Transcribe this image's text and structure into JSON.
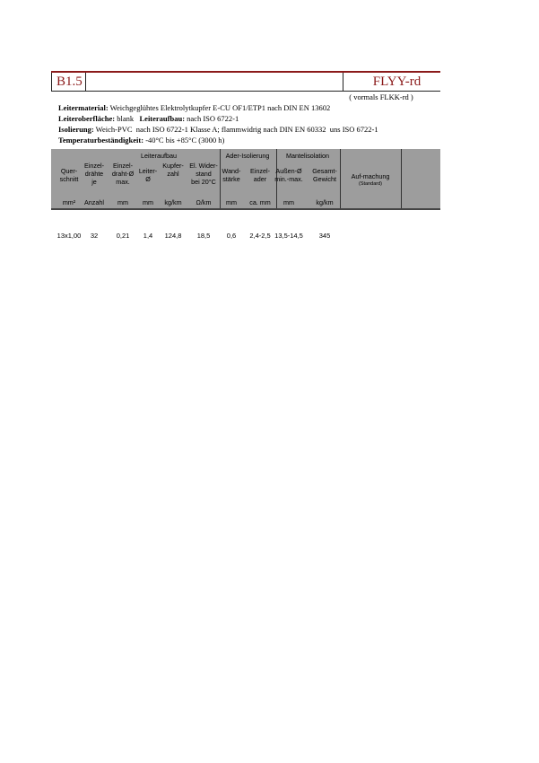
{
  "header": {
    "code": "B1.5",
    "product": "FLYY-rd",
    "formerly": "( vormals FLKK-rd )"
  },
  "specs": [
    {
      "label": "Leitermaterial:",
      "value": " Weichgeglühtes Elektrolytkupfer E-CU OF1/ETP1 nach DIN EN 13602"
    },
    {
      "label": "Leiteroberfläche:",
      "value": " blank   ",
      "label2": "Leiteraufbau:",
      "value2": " nach ISO 6722-1"
    },
    {
      "label": "Isolierung:",
      "value": " Weich-PVC  nach ISO 6722-1 Klasse A; flammwidrig nach DIN EN 60332  uns ISO 6722-1"
    },
    {
      "label": "Temperaturbeständigkeit:",
      "value": " -40°C bis +85°C (3000 h)"
    }
  ],
  "table": {
    "groups": [
      "Leiteraufbau",
      "Ader-Isolierung",
      "Mantelisolation"
    ],
    "columns": [
      {
        "label": "Quer-\nschnitt",
        "unit": "mm²"
      },
      {
        "label": "Einzel-\ndrähte\nje",
        "unit": "Anzahl"
      },
      {
        "label": "Einzel-\ndraht-Ø\nmax.",
        "unit": "mm"
      },
      {
        "label": "Leiter-\nØ",
        "unit": "mm"
      },
      {
        "label": "Kupfer-\nzahl",
        "unit": "kg/km"
      },
      {
        "label": "El. Wider-\nstand\nbei 20°C",
        "unit": "Ω/km"
      },
      {
        "label": "Wand-\nstärke",
        "unit": "mm"
      },
      {
        "label": "Einzel-\nader",
        "unit": "ca. mm"
      },
      {
        "label": "Außen-Ø\nmin.-max.",
        "unit": "mm"
      },
      {
        "label": "Gesamt-\nGewicht",
        "unit": "kg/km"
      },
      {
        "label": "Auf-machung",
        "sub": "(Standard)",
        "unit": ""
      }
    ],
    "rows": [
      [
        "13x1,00",
        "32",
        "0,21",
        "1,4",
        "124,8",
        "18,5",
        "0,6",
        "2,4-2,5",
        "13,5-14,5",
        "345",
        ""
      ]
    ]
  }
}
